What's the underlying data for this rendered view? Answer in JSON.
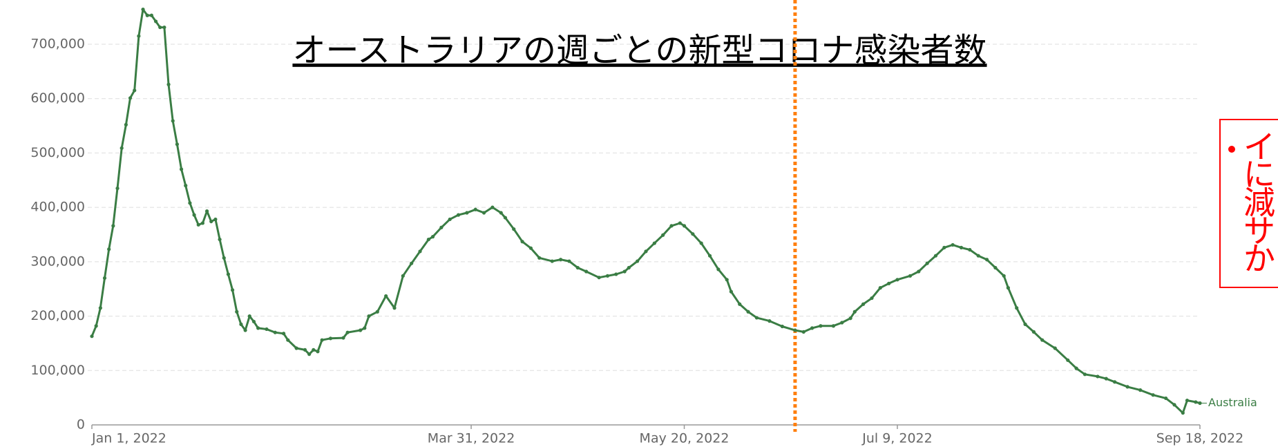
{
  "chart_data": {
    "type": "line",
    "title": "オーストラリアの週ごとの新型コロナ感染者数",
    "x": [
      "2022-01-01",
      "2022-01-02",
      "2022-01-03",
      "2022-01-04",
      "2022-01-05",
      "2022-01-06",
      "2022-01-07",
      "2022-01-08",
      "2022-01-09",
      "2022-01-10",
      "2022-01-11",
      "2022-01-12",
      "2022-01-13",
      "2022-01-14",
      "2022-01-15",
      "2022-01-16",
      "2022-01-17",
      "2022-01-18",
      "2022-01-19",
      "2022-01-20",
      "2022-01-21",
      "2022-01-22",
      "2022-01-23",
      "2022-01-24",
      "2022-01-25",
      "2022-01-26",
      "2022-01-27",
      "2022-01-28",
      "2022-01-29",
      "2022-01-30",
      "2022-01-31",
      "2022-02-01",
      "2022-02-02",
      "2022-02-03",
      "2022-02-04",
      "2022-02-05",
      "2022-02-06",
      "2022-02-07",
      "2022-02-08",
      "2022-02-09",
      "2022-02-11",
      "2022-02-13",
      "2022-02-15",
      "2022-02-16",
      "2022-02-18",
      "2022-02-20",
      "2022-02-21",
      "2022-02-22",
      "2022-02-23",
      "2022-02-24",
      "2022-02-26",
      "2022-03-01",
      "2022-03-02",
      "2022-03-05",
      "2022-03-06",
      "2022-03-07",
      "2022-03-09",
      "2022-03-11",
      "2022-03-13",
      "2022-03-15",
      "2022-03-17",
      "2022-03-19",
      "2022-03-21",
      "2022-03-22",
      "2022-03-24",
      "2022-03-26",
      "2022-03-28",
      "2022-03-30",
      "2022-04-01",
      "2022-04-03",
      "2022-04-05",
      "2022-04-07",
      "2022-04-08",
      "2022-04-10",
      "2022-04-12",
      "2022-04-14",
      "2022-04-16",
      "2022-04-19",
      "2022-04-21",
      "2022-04-23",
      "2022-04-25",
      "2022-04-27",
      "2022-04-30",
      "2022-05-02",
      "2022-05-04",
      "2022-05-06",
      "2022-05-07",
      "2022-05-09",
      "2022-05-11",
      "2022-05-13",
      "2022-05-15",
      "2022-05-17",
      "2022-05-19",
      "2022-05-20",
      "2022-05-22",
      "2022-05-24",
      "2022-05-26",
      "2022-05-28",
      "2022-05-30",
      "2022-05-31",
      "2022-06-02",
      "2022-06-04",
      "2022-06-06",
      "2022-06-09",
      "2022-06-12",
      "2022-06-15",
      "2022-06-17",
      "2022-06-19",
      "2022-06-21",
      "2022-06-24",
      "2022-06-26",
      "2022-06-28",
      "2022-06-29",
      "2022-07-01",
      "2022-07-03",
      "2022-07-05",
      "2022-07-07",
      "2022-07-09",
      "2022-07-12",
      "2022-07-14",
      "2022-07-16",
      "2022-07-18",
      "2022-07-20",
      "2022-07-22",
      "2022-07-24",
      "2022-07-26",
      "2022-07-28",
      "2022-07-30",
      "2022-08-01",
      "2022-08-03",
      "2022-08-04",
      "2022-08-06",
      "2022-08-08",
      "2022-08-10",
      "2022-08-12",
      "2022-08-15",
      "2022-08-18",
      "2022-08-20",
      "2022-08-22",
      "2022-08-25",
      "2022-08-27",
      "2022-08-29",
      "2022-09-01",
      "2022-09-04",
      "2022-09-07",
      "2022-09-10",
      "2022-09-12",
      "2022-09-14",
      "2022-09-15",
      "2022-09-17",
      "2022-09-18"
    ],
    "series": [
      {
        "name": "Australia",
        "color": "#3a7d44",
        "values": [
          163000,
          182000,
          215000,
          270000,
          323000,
          366000,
          435000,
          509000,
          552000,
          601000,
          615000,
          715000,
          764000,
          753000,
          753000,
          742000,
          731000,
          731000,
          626000,
          559000,
          516000,
          470000,
          440000,
          408000,
          386000,
          368000,
          371000,
          393000,
          374000,
          378000,
          341000,
          307000,
          277000,
          248000,
          208000,
          185000,
          174000,
          200000,
          190000,
          178000,
          176000,
          170000,
          168000,
          156000,
          141000,
          138000,
          130000,
          138000,
          135000,
          156000,
          159000,
          160000,
          170000,
          174000,
          178000,
          200000,
          208000,
          237000,
          215000,
          274000,
          297000,
          319000,
          341000,
          346000,
          363000,
          378000,
          386000,
          390000,
          396000,
          390000,
          400000,
          390000,
          381000,
          360000,
          337000,
          325000,
          307000,
          301000,
          304000,
          301000,
          289000,
          282000,
          271000,
          274000,
          277000,
          282000,
          289000,
          301000,
          319000,
          334000,
          349000,
          366000,
          371000,
          366000,
          351000,
          334000,
          311000,
          286000,
          267000,
          245000,
          222000,
          208000,
          197000,
          191000,
          181000,
          174000,
          171000,
          178000,
          182000,
          182000,
          188000,
          196000,
          208000,
          222000,
          233000,
          252000,
          260000,
          267000,
          274000,
          282000,
          297000,
          311000,
          326000,
          331000,
          326000,
          322000,
          311000,
          304000,
          289000,
          274000,
          252000,
          215000,
          185000,
          171000,
          156000,
          141000,
          119000,
          104000,
          93000,
          89000,
          85000,
          79000,
          70000,
          64000,
          55000,
          49000,
          37000,
          22000,
          45000,
          42000,
          40000
        ]
      }
    ],
    "xlim": [
      "2022-01-01",
      "2022-09-18"
    ],
    "xticks": [
      {
        "value": "2022-01-01",
        "label": "Jan 1, 2022"
      },
      {
        "value": "2022-03-31",
        "label": "Mar 31, 2022"
      },
      {
        "value": "2022-05-20",
        "label": "May 20, 2022"
      },
      {
        "value": "2022-07-09",
        "label": "Jul 9, 2022"
      },
      {
        "value": "2022-09-18",
        "label": "Sep 18, 2022"
      }
    ],
    "ylim": [
      0,
      780000
    ],
    "yticks": [
      0,
      {
        "value": 100000,
        "label": "100,000"
      },
      {
        "value": 200000,
        "label": "200,000"
      },
      {
        "value": 300000,
        "label": "300,000"
      },
      {
        "value": 400000,
        "label": "400,000"
      },
      {
        "value": 500000,
        "label": "500,000"
      },
      {
        "value": 600000,
        "label": "600,000"
      },
      {
        "value": 700000,
        "label": "700,000"
      }
    ],
    "grid": true,
    "vline": {
      "x": "2022-06-15",
      "color": "#ff7f0e"
    },
    "note": {
      "lines": [
        "イ",
        "に",
        "減",
        "サ",
        "か"
      ],
      "color": "#ff0000"
    }
  }
}
